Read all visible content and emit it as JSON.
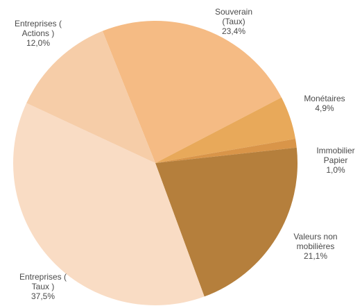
{
  "chart_data": {
    "type": "pie",
    "categories": [
      [
        "Souverain",
        "(Taux)"
      ],
      [
        "Monétaires"
      ],
      [
        "Immobilier",
        "Papier"
      ],
      [
        "Valeurs non",
        "mobilières"
      ],
      [
        "Entreprises (",
        "Taux )"
      ],
      [
        "Entreprises (",
        "Actions )"
      ]
    ],
    "values": [
      23.4,
      4.9,
      1.0,
      21.1,
      37.5,
      12.0
    ],
    "value_labels": [
      "23,4%",
      "4,9%",
      "1,0%",
      "21,1%",
      "37,5%",
      "12,0%"
    ],
    "colors": [
      "#f5bb84",
      "#e8a95a",
      "#d99549",
      "#b57f3c",
      "#f9dcc4",
      "#f6cda8"
    ]
  }
}
